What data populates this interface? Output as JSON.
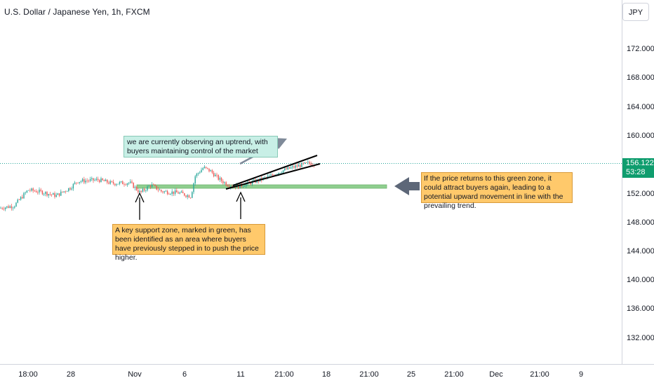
{
  "header": {
    "symbol_title": "U.S. Dollar / Japanese Yen, 1h, FXCM",
    "currency": "JPY"
  },
  "price_axis": {
    "labels": [
      "172.000",
      "168.000",
      "164.000",
      "160.000",
      "152.000",
      "148.000",
      "144.000",
      "140.000",
      "136.000",
      "132.000"
    ]
  },
  "time_axis": {
    "labels": [
      "18:00",
      "28",
      "Nov",
      "6",
      "11",
      "21:00",
      "18",
      "21:00",
      "25",
      "21:00",
      "Dec",
      "21:00",
      "9"
    ]
  },
  "last_price": {
    "price": "156.122",
    "countdown": "53:28",
    "color": "#0f9d6e"
  },
  "annotations": {
    "uptrend_note": "we are currently observing an uptrend, with buyers maintaining control of the market",
    "support_note": "A key support zone, marked in green, has been identified as an area where buyers have previously stepped in to push the price higher.",
    "retest_note": "If the price returns to this green zone, it could attract buyers again, leading to a potential upward movement in line with the prevailing trend."
  },
  "chart_data": {
    "type": "candlestick",
    "symbol": "USDJPY",
    "timeframe": "1h",
    "y_axis_ticks": [
      172,
      168,
      164,
      160,
      152,
      148,
      144,
      140,
      136,
      132
    ],
    "ylim": [
      128.5,
      177.5
    ],
    "last_price": 156.122,
    "support_zone": [
      153.0,
      153.5
    ],
    "colors": {
      "up": "#26a69a",
      "down": "#ef5350",
      "zone": "#8fce8f",
      "price_line": "#26a69a"
    }
  }
}
